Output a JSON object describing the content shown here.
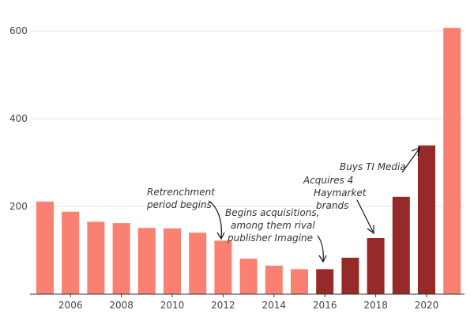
{
  "chart_data": {
    "type": "bar",
    "categories": [
      "2005",
      "2006",
      "2007",
      "2008",
      "2009",
      "2010",
      "2011",
      "2012",
      "2013",
      "2014",
      "2015",
      "2016",
      "2017",
      "2018",
      "2019",
      "2020",
      "2021"
    ],
    "x_tick_labels": [
      "2006",
      "2008",
      "2010",
      "2012",
      "2014",
      "2016",
      "2018",
      "2020"
    ],
    "values": [
      211,
      188,
      165,
      162,
      151,
      150,
      140,
      122,
      81,
      65,
      57,
      57,
      83,
      128,
      222,
      339,
      607
    ],
    "bar_colors": [
      "#fa8072",
      "#fa8072",
      "#fa8072",
      "#fa8072",
      "#fa8072",
      "#fa8072",
      "#fa8072",
      "#fa8072",
      "#fa8072",
      "#fa8072",
      "#fa8072",
      "#962a28",
      "#962a28",
      "#962a28",
      "#962a28",
      "#962a28",
      "#fa8072"
    ],
    "colors": {
      "light": "#fa8072",
      "dark": "#962a28"
    },
    "yticks": [
      200,
      400,
      600
    ],
    "ylim": [
      0,
      620
    ],
    "title": "",
    "xlabel": "",
    "ylabel": "",
    "grid": "horizontal",
    "annotations": [
      {
        "lines": [
          "Retrenchment",
          "period begins"
        ]
      },
      {
        "lines": [
          "Begins acquisitions,",
          "among them rival",
          "publisher Imagine"
        ]
      },
      {
        "lines": [
          "Acquires 4",
          "Haymarket",
          "brands"
        ]
      },
      {
        "lines": [
          "Buys TI Media"
        ]
      }
    ]
  }
}
